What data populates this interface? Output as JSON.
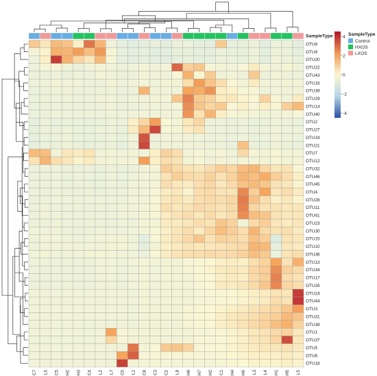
{
  "chart_data": {
    "type": "heatmap",
    "columns": [
      "C7",
      "L6",
      "C5",
      "H2",
      "H3",
      "C4",
      "L2",
      "L7",
      "C6",
      "L1",
      "C8",
      "C3",
      "C2",
      "L8",
      "H8",
      "H7",
      "H2",
      "C1",
      "H4",
      "H6",
      "L3",
      "L4",
      "H1",
      "H5",
      "L5"
    ],
    "column_sample_types": [
      "Control",
      "LXOS",
      "Control",
      "Control",
      "HXOS",
      "HXOS",
      "LXOS",
      "LXOS",
      "Control",
      "Control",
      "LXOS",
      "Control",
      "Control",
      "LXOS",
      "HXOS",
      "HXOS",
      "HXOS",
      "HXOS",
      "Control",
      "HXOS",
      "LXOS",
      "LXOS",
      "HXOS",
      "HXOS",
      "LXOS"
    ],
    "rows": [
      "OTU8",
      "OTU9",
      "OTU20",
      "OTU22",
      "OTU43",
      "OTU16",
      "OTU39",
      "OTU29",
      "OTU14",
      "OTU40",
      "OTU2",
      "OTU27",
      "OTU19",
      "OTU21",
      "OTU7",
      "OTU12",
      "OTU32",
      "OTU46",
      "OTU45",
      "OTU4",
      "OTU28",
      "OTU11",
      "OTU41",
      "OTU23",
      "OTU30",
      "OTU15",
      "OTU10",
      "OTU36",
      "OTU13",
      "OTU34",
      "OTU17",
      "OTU26",
      "OTU24",
      "OTU44",
      "OTU3",
      "OTU31",
      "OTU38",
      "OTU1",
      "OTU37",
      "OTU5",
      "OTU6",
      "OTU18"
    ],
    "annotation_label": "SampleType",
    "legend": {
      "title": "SampleType",
      "entries": [
        {
          "label": "Control",
          "color": "#6aade4"
        },
        {
          "label": "HXOS",
          "color": "#22c35e"
        },
        {
          "label": "LXOS",
          "color": "#f09a9a"
        }
      ]
    },
    "colorbar": {
      "ticks": [
        4,
        2,
        0,
        -2,
        -4
      ],
      "vmin": -4.5,
      "vmax": 4.5
    },
    "color_scale": {
      "low": "#2a50a4",
      "mid_low": "#c6e4ee",
      "mid": "#fbf7d2",
      "mid_high": "#f6a55b",
      "high": "#b3142a"
    },
    "values": [
      [
        1.1,
        0.4,
        1.5,
        1.3,
        0.2,
        2.8,
        1.6,
        -0.5,
        -0.8,
        -1.0,
        -0.8,
        -0.7,
        -0.9,
        -0.6,
        -0.6,
        -0.8,
        -0.8,
        1.1,
        -0.7,
        -0.7,
        -0.5,
        -0.9,
        -0.5,
        -0.6,
        -0.8
      ],
      [
        -0.3,
        0.1,
        1.7,
        1.6,
        2.1,
        1.4,
        2.2,
        -0.2,
        -0.8,
        -0.9,
        -0.8,
        -1.0,
        -0.9,
        -0.7,
        -0.7,
        -0.8,
        -0.8,
        -0.6,
        -0.7,
        -0.7,
        -0.5,
        -0.9,
        -0.5,
        -0.6,
        -0.8
      ],
      [
        -0.5,
        0.2,
        3.8,
        1.7,
        0.8,
        0.4,
        1.5,
        -0.2,
        -0.8,
        -0.9,
        -0.8,
        -0.9,
        -0.9,
        -0.8,
        -0.7,
        -0.8,
        -0.8,
        -0.6,
        -0.6,
        -0.7,
        -0.5,
        -0.9,
        -0.4,
        -0.5,
        -0.7
      ],
      [
        -0.6,
        -0.2,
        -0.2,
        -0.5,
        -0.6,
        -0.4,
        -0.3,
        -0.4,
        -0.5,
        -0.4,
        -0.3,
        -0.4,
        -0.3,
        3.1,
        1.0,
        1.2,
        -0.2,
        -0.3,
        -0.4,
        -0.2,
        0.3,
        -0.3,
        -0.4,
        -0.2,
        -0.4
      ],
      [
        -0.5,
        -0.5,
        -0.4,
        -0.6,
        -0.4,
        -0.5,
        -0.3,
        -0.4,
        -0.5,
        -0.5,
        -0.3,
        -0.4,
        -0.4,
        -0.2,
        1.7,
        -0.1,
        1.1,
        -0.5,
        -0.3,
        -0.5,
        1.1,
        -0.5,
        -0.3,
        -0.4,
        -0.5
      ],
      [
        -0.5,
        -0.4,
        -0.3,
        -0.4,
        -0.4,
        -0.5,
        -0.5,
        -0.3,
        -0.5,
        -0.4,
        -0.3,
        -0.4,
        -0.3,
        -0.3,
        0.6,
        2.1,
        1.2,
        0.6,
        -0.1,
        -0.3,
        0.3,
        -0.4,
        -0.4,
        -0.3,
        -0.3
      ],
      [
        -0.6,
        -0.5,
        -0.4,
        -0.4,
        -0.5,
        -0.5,
        -0.5,
        -0.4,
        -0.6,
        -0.5,
        1.6,
        -0.4,
        -0.4,
        -0.4,
        2.0,
        1.8,
        2.3,
        0.2,
        0.1,
        -0.2,
        -0.2,
        -0.5,
        -0.4,
        -0.4,
        -0.4
      ],
      [
        -0.6,
        -0.5,
        -0.4,
        -0.5,
        -0.5,
        -0.5,
        -0.4,
        -0.4,
        -0.5,
        -0.4,
        -0.4,
        -0.3,
        -0.3,
        1.2,
        2.6,
        1.1,
        0.9,
        0.3,
        0.4,
        0.1,
        -0.1,
        0.9,
        -0.2,
        -0.4,
        0.3
      ],
      [
        -0.6,
        -0.5,
        -0.5,
        -0.5,
        -0.5,
        -0.5,
        -0.5,
        -0.4,
        -0.6,
        -0.5,
        -0.4,
        -0.4,
        -0.4,
        -0.3,
        2.4,
        1.2,
        0.8,
        1.1,
        -0.1,
        0.2,
        -0.2,
        0.2,
        -0.1,
        1.0,
        1.5
      ],
      [
        -0.6,
        -0.5,
        -0.4,
        -0.5,
        -0.5,
        -0.5,
        -0.5,
        -0.4,
        -0.5,
        -0.4,
        -0.4,
        -0.4,
        -0.4,
        -0.4,
        2.3,
        0.5,
        1.6,
        0.2,
        -0.2,
        -0.3,
        -0.3,
        -0.4,
        -0.4,
        -0.3,
        -0.2
      ],
      [
        -0.8,
        -0.5,
        -0.7,
        -0.6,
        -0.6,
        -0.7,
        -0.6,
        -0.5,
        -0.6,
        0.2,
        0.8,
        2.1,
        -0.1,
        -0.3,
        0.4,
        0.8,
        -0.5,
        -0.5,
        -0.6,
        -0.5,
        -0.6,
        -0.6,
        -0.4,
        -0.5,
        -0.6
      ],
      [
        -0.7,
        -0.5,
        -0.6,
        -0.5,
        -0.6,
        -0.6,
        -0.5,
        -0.5,
        -0.6,
        0.3,
        1.5,
        3.6,
        -0.2,
        -0.3,
        0.3,
        0.5,
        -0.5,
        -0.5,
        -0.6,
        -0.5,
        -0.6,
        -0.5,
        -0.4,
        -0.5,
        -0.5
      ],
      [
        -0.8,
        -0.6,
        -0.6,
        -0.5,
        -0.6,
        -0.7,
        -0.6,
        -0.5,
        -0.7,
        -0.4,
        3.4,
        -0.5,
        -0.4,
        -0.4,
        -0.4,
        -0.4,
        -0.5,
        -0.5,
        -0.6,
        -0.5,
        -0.6,
        -0.6,
        -0.4,
        -0.5,
        -0.6
      ],
      [
        -0.8,
        -0.6,
        -0.6,
        -0.5,
        -0.6,
        -0.7,
        -0.6,
        -0.5,
        -0.7,
        -0.4,
        3.6,
        -0.5,
        -0.4,
        -0.4,
        -0.4,
        -0.4,
        -0.5,
        -0.5,
        -0.6,
        1.3,
        -0.6,
        -0.6,
        -0.4,
        -0.5,
        -0.6
      ],
      [
        1.5,
        1.4,
        -0.4,
        0.4,
        0.3,
        0.5,
        -0.4,
        -0.3,
        -0.4,
        -0.3,
        -0.4,
        0.2,
        0.9,
        0.6,
        -0.3,
        -0.2,
        -0.3,
        -0.2,
        -0.4,
        0.7,
        -0.2,
        -0.3,
        -0.2,
        -0.3,
        -0.3
      ],
      [
        0.5,
        1.6,
        0.6,
        0.4,
        0.1,
        0.3,
        -0.3,
        -0.3,
        -0.3,
        -0.3,
        2.1,
        0.2,
        0.6,
        0.5,
        -0.3,
        -0.2,
        -0.4,
        -0.3,
        -0.4,
        -0.3,
        -0.3,
        -0.3,
        -0.2,
        -0.3,
        -0.3
      ],
      [
        -0.6,
        -0.5,
        -0.5,
        -0.6,
        -0.6,
        -0.6,
        -0.6,
        -0.5,
        -0.6,
        -0.5,
        -0.4,
        -0.3,
        1.0,
        0.7,
        0.5,
        0.4,
        0.6,
        1.0,
        0.8,
        1.4,
        1.6,
        0.8,
        0.4,
        0.5,
        -0.2
      ],
      [
        -0.6,
        -0.5,
        -0.5,
        -0.6,
        -0.5,
        -0.6,
        -0.6,
        -0.5,
        -0.6,
        -0.5,
        -0.4,
        -0.3,
        0.5,
        1.0,
        0.7,
        0.6,
        0.9,
        0.5,
        0.9,
        1.6,
        1.4,
        1.8,
        1.0,
        0.6,
        0.2
      ],
      [
        -0.5,
        -0.5,
        -0.5,
        -0.6,
        -0.5,
        -0.6,
        -0.6,
        -0.5,
        -0.6,
        -0.4,
        -0.4,
        -0.3,
        0.6,
        0.4,
        0.3,
        0.6,
        0.8,
        0.4,
        0.7,
        1.3,
        1.5,
        1.2,
        0.5,
        0.4,
        0.1
      ],
      [
        -0.5,
        -0.5,
        -0.5,
        -0.5,
        -0.6,
        -0.5,
        -0.6,
        -0.5,
        -0.5,
        -0.4,
        -0.4,
        -0.2,
        0.3,
        0.4,
        0.1,
        0.6,
        0.7,
        0.5,
        0.5,
        2.5,
        1.0,
        2.0,
        0.4,
        0.6,
        0.3
      ],
      [
        -0.6,
        -0.5,
        -0.4,
        -0.5,
        -0.5,
        -0.5,
        -0.5,
        -0.5,
        -0.5,
        -0.4,
        -0.4,
        -0.2,
        0.4,
        0.5,
        0.3,
        0.6,
        0.7,
        0.6,
        0.8,
        2.7,
        1.3,
        0.6,
        0.2,
        0.4,
        0.1
      ],
      [
        -0.5,
        -0.4,
        -0.5,
        -0.5,
        -0.4,
        -0.5,
        -0.5,
        -0.5,
        -0.4,
        -0.4,
        -0.3,
        -0.2,
        0.6,
        0.4,
        0.5,
        0.7,
        0.6,
        0.5,
        0.7,
        2.6,
        0.8,
        0.5,
        0.5,
        0.4,
        0.4
      ],
      [
        -0.5,
        -0.4,
        -0.4,
        -0.5,
        -0.5,
        -0.4,
        -0.5,
        -0.5,
        -0.4,
        -0.4,
        -0.3,
        -0.2,
        0.3,
        0.5,
        0.6,
        0.4,
        0.7,
        0.4,
        0.6,
        2.4,
        1.4,
        1.2,
        0.5,
        0.4,
        0.4
      ],
      [
        -0.5,
        -0.5,
        -0.4,
        -0.5,
        -0.5,
        -0.5,
        -0.5,
        -0.5,
        -0.5,
        -0.5,
        -0.3,
        -0.3,
        0.3,
        0.3,
        0.4,
        0.6,
        0.5,
        1.2,
        0.9,
        -0.4,
        0.7,
        1.0,
        0.4,
        0.3,
        0.4
      ],
      [
        -0.4,
        -0.4,
        -0.4,
        -0.5,
        -0.5,
        -0.5,
        -0.4,
        -0.4,
        -0.5,
        -0.4,
        -0.3,
        -0.2,
        0.2,
        0.4,
        0.6,
        0.3,
        0.8,
        1.4,
        1.0,
        0.6,
        1.6,
        0.7,
        0.5,
        0.6,
        0.3
      ],
      [
        -0.5,
        -0.4,
        -0.4,
        -0.4,
        -0.5,
        -0.4,
        -0.4,
        -0.4,
        -0.3,
        -0.5,
        -1.0,
        -0.2,
        0.3,
        0.5,
        0.7,
        1.2,
        0.5,
        0.9,
        0.8,
        0.6,
        1.3,
        1.0,
        -1.2,
        0.5,
        0.4
      ],
      [
        -0.5,
        -0.4,
        -0.4,
        -0.4,
        -0.4,
        -0.4,
        -0.4,
        -0.3,
        -0.3,
        -0.4,
        -0.8,
        -0.3,
        0.2,
        0.3,
        0.5,
        0.4,
        0.4,
        0.5,
        0.6,
        0.7,
        1.6,
        1.5,
        -0.8,
        0.4,
        0.3
      ],
      [
        -0.4,
        -0.3,
        -0.4,
        -0.4,
        -0.4,
        -0.3,
        -0.3,
        -0.3,
        -0.4,
        -0.4,
        -0.6,
        -0.2,
        0.3,
        0.5,
        0.6,
        0.6,
        0.7,
        0.6,
        0.7,
        0.9,
        1.4,
        1.1,
        -0.6,
        0.5,
        0.6
      ],
      [
        -0.5,
        -0.5,
        -0.5,
        -0.5,
        -0.5,
        -0.5,
        -0.4,
        -0.4,
        -0.5,
        -0.4,
        -0.3,
        -0.4,
        -0.3,
        -0.3,
        -0.2,
        -0.1,
        0.0,
        0.2,
        0.3,
        0.2,
        0.6,
        0.9,
        2.0,
        0.5,
        1.7
      ],
      [
        -0.5,
        -0.5,
        -0.5,
        -0.5,
        -0.5,
        -0.5,
        -0.4,
        -0.4,
        -0.5,
        -0.4,
        -0.3,
        -0.4,
        -0.3,
        -0.3,
        -0.2,
        -0.1,
        0.1,
        0.3,
        0.4,
        0.3,
        0.8,
        1.0,
        2.4,
        0.9,
        0.7
      ],
      [
        -0.5,
        -0.5,
        -0.5,
        -0.5,
        -0.5,
        -0.5,
        -0.4,
        -0.4,
        -0.5,
        -0.4,
        -0.3,
        -0.4,
        -0.3,
        -0.3,
        -0.3,
        -0.1,
        0.0,
        0.2,
        0.3,
        0.2,
        0.7,
        1.0,
        2.6,
        0.6,
        0.5
      ],
      [
        -0.5,
        -0.5,
        -0.5,
        -0.5,
        -0.5,
        -0.5,
        -0.4,
        -0.4,
        -0.5,
        -0.4,
        -0.3,
        -0.4,
        -0.3,
        -0.3,
        -0.3,
        -0.2,
        0.0,
        0.3,
        0.3,
        0.4,
        0.7,
        1.2,
        2.5,
        0.8,
        0.6
      ],
      [
        -0.4,
        -0.4,
        -0.4,
        -0.4,
        -0.4,
        -0.4,
        -0.4,
        -0.4,
        -0.4,
        -0.4,
        -0.3,
        -0.4,
        -0.3,
        -0.3,
        -0.3,
        -0.2,
        -0.2,
        -0.1,
        0.0,
        0.1,
        0.2,
        0.3,
        0.5,
        0.4,
        3.8
      ],
      [
        -0.4,
        -0.4,
        -0.4,
        -0.4,
        -0.4,
        -0.4,
        -0.4,
        -0.4,
        -0.4,
        -0.4,
        -0.3,
        -0.4,
        -0.3,
        -0.3,
        -0.3,
        -0.2,
        -0.2,
        -0.1,
        0.0,
        0.1,
        0.2,
        0.3,
        0.6,
        0.5,
        3.9
      ],
      [
        -0.4,
        -0.4,
        -0.4,
        -0.4,
        -0.4,
        -0.4,
        -0.4,
        -0.4,
        -0.4,
        -0.4,
        -0.3,
        -0.3,
        -0.3,
        -0.3,
        -0.2,
        -0.1,
        0.0,
        0.1,
        0.2,
        0.3,
        0.5,
        0.6,
        0.8,
        1.2,
        2.1
      ],
      [
        -0.4,
        -0.4,
        -0.4,
        -0.4,
        -0.4,
        -0.4,
        -0.4,
        -0.4,
        -0.4,
        -0.4,
        -0.3,
        -0.3,
        -0.3,
        -0.3,
        -0.2,
        -0.1,
        0.0,
        0.2,
        0.4,
        0.5,
        0.6,
        0.8,
        1.0,
        1.5,
        1.2
      ],
      [
        -0.4,
        -0.4,
        -0.4,
        -0.4,
        -0.4,
        -0.4,
        -0.4,
        -0.4,
        -0.4,
        -0.4,
        -0.3,
        -0.3,
        -0.3,
        -0.3,
        -0.2,
        -0.1,
        0.0,
        0.2,
        0.3,
        0.5,
        0.7,
        0.9,
        1.4,
        1.7,
        0.9
      ],
      [
        -0.4,
        -0.4,
        -0.4,
        -0.4,
        -0.4,
        -0.4,
        -0.4,
        2.0,
        -0.2,
        -0.3,
        -0.3,
        -0.3,
        -0.3,
        -0.3,
        -0.3,
        -0.2,
        -0.2,
        -0.1,
        0.1,
        0.2,
        0.4,
        0.5,
        0.7,
        0.9,
        0.4
      ],
      [
        -0.4,
        -0.4,
        -0.4,
        -0.4,
        -0.4,
        -0.4,
        -0.4,
        0.8,
        -0.2,
        -0.3,
        -0.3,
        -0.3,
        -0.3,
        -0.3,
        -0.3,
        -0.2,
        -0.2,
        -0.1,
        0.1,
        0.2,
        0.4,
        0.5,
        0.8,
        3.5,
        0.4
      ],
      [
        -0.4,
        -0.4,
        -0.4,
        -0.4,
        -0.4,
        -0.4,
        -0.4,
        -0.4,
        -0.4,
        2.8,
        -0.3,
        -0.2,
        1.1,
        1.2,
        0.9,
        -0.2,
        -0.2,
        -0.1,
        0.1,
        0.2,
        0.3,
        0.4,
        0.4,
        0.5,
        0.3
      ],
      [
        -0.4,
        -0.4,
        -0.4,
        -0.4,
        -0.4,
        -0.4,
        -0.4,
        -0.4,
        2.0,
        3.2,
        -0.2,
        -0.2,
        -0.2,
        -0.2,
        -0.2,
        -0.2,
        -0.2,
        -0.1,
        0.0,
        0.1,
        0.2,
        0.2,
        0.2,
        0.3,
        0.2
      ],
      [
        -0.4,
        -0.4,
        -0.4,
        -0.4,
        -0.4,
        -0.4,
        -0.4,
        -0.4,
        3.7,
        -0.3,
        -0.3,
        -0.3,
        -0.3,
        -0.3,
        -0.3,
        -0.3,
        -0.3,
        -0.2,
        -0.1,
        0.0,
        0.1,
        0.1,
        0.1,
        0.2,
        0.1
      ]
    ]
  }
}
